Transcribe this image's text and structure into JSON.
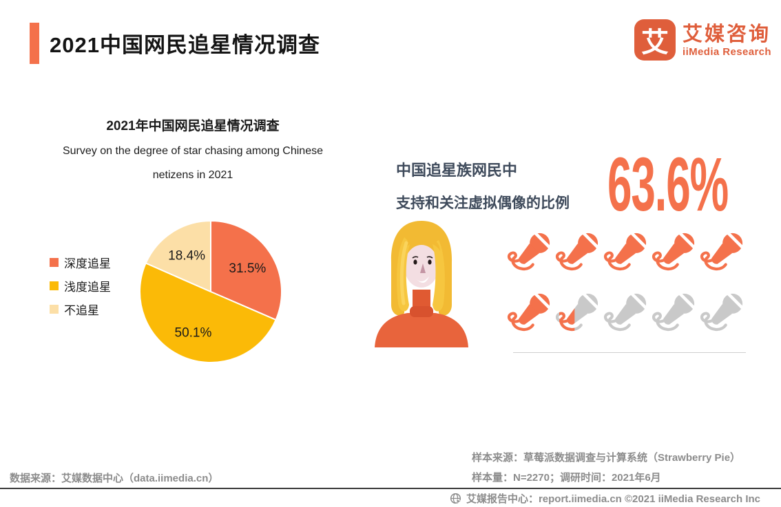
{
  "header": {
    "title": "2021中国网民追星情况调查",
    "logo": {
      "icon_char": "艾",
      "name_cn": "艾媒咨询",
      "name_en": "iiMedia Research"
    }
  },
  "chart_data": {
    "type": "pie",
    "title": "2021年中国网民追星情况调查",
    "subtitle": [
      "Survey on the degree of star chasing among Chinese",
      "netizens in 2021"
    ],
    "labels": [
      "深度追星",
      "浅度追星",
      "不追星"
    ],
    "values": [
      31.5,
      50.1,
      18.4
    ],
    "value_labels": [
      "31.5%",
      "50.1%",
      "18.4%"
    ],
    "colors": [
      "#F4714B",
      "#FBBA07",
      "#FCDFA7"
    ],
    "legend_position": "left",
    "start_angle_deg": 0,
    "direction": "clockwise"
  },
  "highlight": {
    "heading_line1": "中国追星族网民中",
    "heading_line2": "支持和关注虚拟偶像的比例",
    "value": "63.6%",
    "value_number": 63.6,
    "icon": "microphone-icon",
    "icon_total": 10,
    "icon_filled": 6.36,
    "icon_color_filled": "#F4714B",
    "icon_color_empty": "#C9C9C9"
  },
  "sources": {
    "data_source": "数据来源：艾媒数据中心（data.iimedia.cn）",
    "sample_source": "样本来源：草莓派数据调查与计算系统（Strawberry Pie）",
    "sample_size": "样本量：N=2270；调研时间：2021年6月"
  },
  "footer": {
    "text": "艾媒报告中心：report.iimedia.cn  ©2021  iiMedia Research Inc"
  },
  "colors": {
    "accent": "#F4714B",
    "heading_dark": "#3E4A5B",
    "text_gray": "#8C8C8C"
  }
}
